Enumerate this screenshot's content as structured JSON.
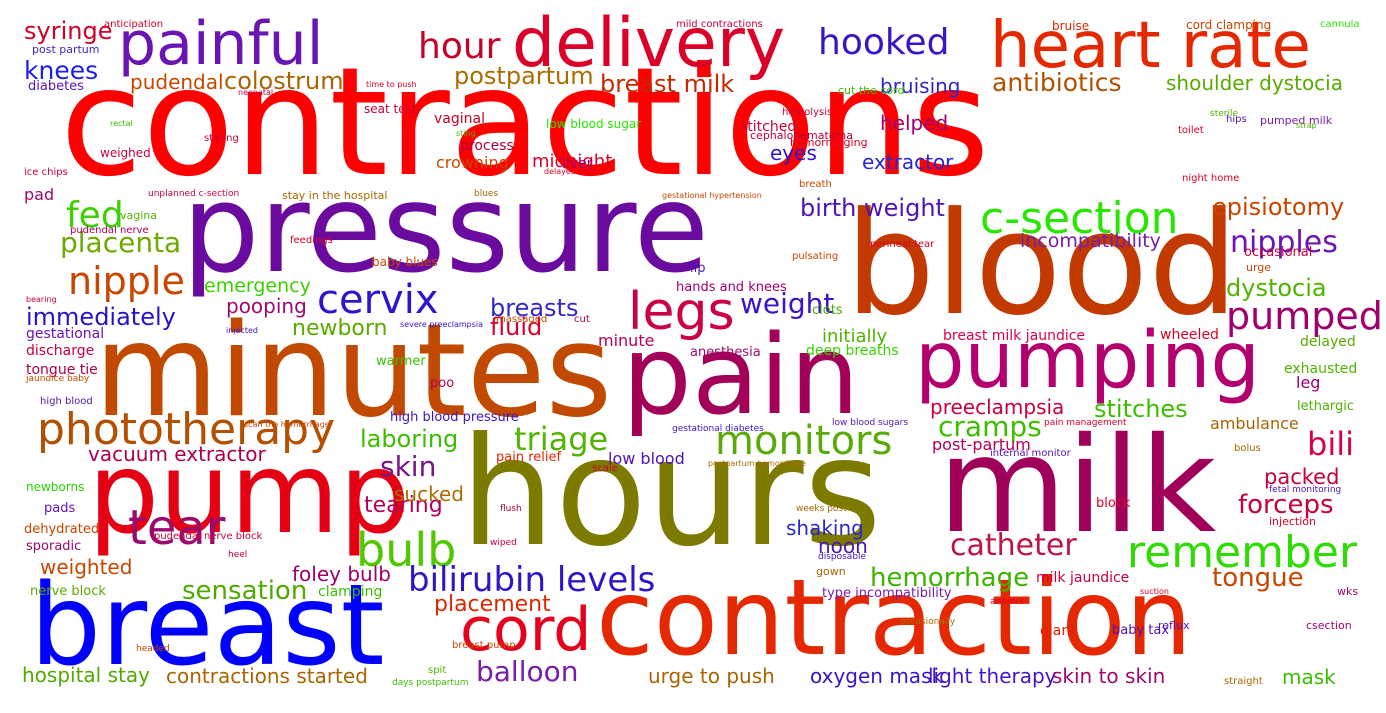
{
  "words": [
    {
      "text": "contractions",
      "color": "#ff0000"
    },
    {
      "text": "pressure",
      "color": "#6a0a9e"
    },
    {
      "text": "blood",
      "color": "#c23a00"
    },
    {
      "text": "minutes",
      "color": "#c24a00"
    },
    {
      "text": "pain",
      "color": "#a3005a"
    },
    {
      "text": "hours",
      "color": "#7d7a00"
    },
    {
      "text": "milk",
      "color": "#a0005a"
    },
    {
      "text": "pump",
      "color": "#e60014"
    },
    {
      "text": "breast",
      "color": "#0000ff"
    },
    {
      "text": "contraction",
      "color": "#e62800"
    },
    {
      "text": "painful",
      "color": "#6a14b4"
    },
    {
      "text": "delivery",
      "color": "#dc0028"
    },
    {
      "text": "heart rate",
      "color": "#e62800"
    },
    {
      "text": "pumping",
      "color": "#b4006e"
    },
    {
      "text": "legs",
      "color": "#cc0044"
    },
    {
      "text": "cervix",
      "color": "#2d14d2"
    },
    {
      "text": "phototherapy",
      "color": "#b45000"
    },
    {
      "text": "tear",
      "color": "#9b0a6e"
    },
    {
      "text": "cord",
      "color": "#e6001e"
    },
    {
      "text": "monitors",
      "color": "#5aaa0a"
    },
    {
      "text": "c-section",
      "color": "#28e600"
    },
    {
      "text": "bulb",
      "color": "#50c800"
    },
    {
      "text": "remember",
      "color": "#2ddc00"
    },
    {
      "text": "bilirubin levels",
      "color": "#3214c8"
    },
    {
      "text": "catheter",
      "color": "#be1446"
    },
    {
      "text": "nipple",
      "color": "#c84600"
    },
    {
      "text": "hour",
      "color": "#c80028"
    },
    {
      "text": "hooked",
      "color": "#3c14c8"
    },
    {
      "text": "pumped",
      "color": "#a0006e"
    },
    {
      "text": "nipples",
      "color": "#6e14b4"
    },
    {
      "text": "fed",
      "color": "#3cd200"
    },
    {
      "text": "placenta",
      "color": "#6eaa00"
    },
    {
      "text": "knees",
      "color": "#1e1ee6"
    },
    {
      "text": "syringe",
      "color": "#d20028"
    },
    {
      "text": "pudendal",
      "color": "#c84600"
    },
    {
      "text": "colostrum",
      "color": "#aa6400"
    },
    {
      "text": "postpartum",
      "color": "#aa6e00"
    },
    {
      "text": "breast milk",
      "color": "#c82800"
    },
    {
      "text": "antibiotics",
      "color": "#b45000"
    },
    {
      "text": "shoulder dystocia",
      "color": "#5aaa00"
    },
    {
      "text": "bruising",
      "color": "#2d28c8"
    },
    {
      "text": "birth weight",
      "color": "#5014b4"
    },
    {
      "text": "episiotomy",
      "color": "#c84600"
    },
    {
      "text": "incompatibility",
      "color": "#781eaa"
    },
    {
      "text": "emergency",
      "color": "#3cd200"
    },
    {
      "text": "immediately",
      "color": "#2814c8"
    },
    {
      "text": "breasts",
      "color": "#3228c8"
    },
    {
      "text": "weight",
      "color": "#3c14c8"
    },
    {
      "text": "fluid",
      "color": "#dc0028"
    },
    {
      "text": "newborn",
      "color": "#5aaa00"
    },
    {
      "text": "dystocia",
      "color": "#50b400"
    },
    {
      "text": "stitches",
      "color": "#3cbe00"
    },
    {
      "text": "bili",
      "color": "#dc0046"
    },
    {
      "text": "cramps",
      "color": "#3cbe00"
    },
    {
      "text": "preeclampsia",
      "color": "#c8003c"
    },
    {
      "text": "triage",
      "color": "#50b400"
    },
    {
      "text": "laboring",
      "color": "#3cbe00"
    },
    {
      "text": "skin",
      "color": "#78148c"
    },
    {
      "text": "tearing",
      "color": "#b4005a"
    },
    {
      "text": "sensation",
      "color": "#50aa00"
    },
    {
      "text": "hemorrhage",
      "color": "#3cb400"
    },
    {
      "text": "tongue",
      "color": "#c84600"
    },
    {
      "text": "forceps",
      "color": "#c8003c"
    },
    {
      "text": "packed",
      "color": "#c8003c"
    },
    {
      "text": "balloon",
      "color": "#781eaa"
    },
    {
      "text": "placement",
      "color": "#dc2800"
    },
    {
      "text": "foley bulb",
      "color": "#a0006e"
    },
    {
      "text": "hospital stay",
      "color": "#50aa00"
    },
    {
      "text": "contractions started",
      "color": "#aa6400"
    },
    {
      "text": "urge to push",
      "color": "#aa6400"
    },
    {
      "text": "oxygen mask",
      "color": "#3c14c8"
    },
    {
      "text": "light therapy",
      "color": "#4614c8"
    },
    {
      "text": "skin to skin",
      "color": "#9b0a6e"
    },
    {
      "text": "mask",
      "color": "#3cbe00"
    },
    {
      "text": "vacuum extractor",
      "color": "#aa0050"
    },
    {
      "text": "sucked",
      "color": "#aa6e00"
    },
    {
      "text": "weighted",
      "color": "#c84600"
    },
    {
      "text": "noon",
      "color": "#5014b4"
    },
    {
      "text": "shaking",
      "color": "#2d28c8"
    },
    {
      "text": "pooping",
      "color": "#9b0a6e"
    },
    {
      "text": "helped",
      "color": "#a0006e"
    },
    {
      "text": "eyes",
      "color": "#3214c8"
    },
    {
      "text": "extractor",
      "color": "#2828d2"
    },
    {
      "text": "midnight",
      "color": "#dc0028"
    },
    {
      "text": "liver",
      "color": "#a0006e"
    },
    {
      "text": "crowning",
      "color": "#c84600"
    },
    {
      "text": "process",
      "color": "#b4003c"
    },
    {
      "text": "vaginal",
      "color": "#c80028"
    },
    {
      "text": "stitched",
      "color": "#c8003c"
    },
    {
      "text": "minute",
      "color": "#b4005a"
    },
    {
      "text": "initially",
      "color": "#50b400"
    },
    {
      "text": "breast milk jaundice",
      "color": "#dc0046"
    },
    {
      "text": "ambulance",
      "color": "#aa6400"
    },
    {
      "text": "leg",
      "color": "#a0006e"
    },
    {
      "text": "low blood",
      "color": "#5014b4"
    },
    {
      "text": "post-partum",
      "color": "#b4005a"
    },
    {
      "text": "high blood pressure",
      "color": "#3c14c8"
    },
    {
      "text": "pain relief",
      "color": "#e62800"
    },
    {
      "text": "deep breaths",
      "color": "#3cd200"
    },
    {
      "text": "anesthesia",
      "color": "#9b0a6e"
    },
    {
      "text": "clots",
      "color": "#50aa00"
    },
    {
      "text": "hands and knees",
      "color": "#a0006e"
    },
    {
      "text": "warmer",
      "color": "#3cbe00"
    },
    {
      "text": "poo",
      "color": "#b4005a"
    },
    {
      "text": "lip",
      "color": "#5014b4"
    },
    {
      "text": "gestational",
      "color": "#6e14b4"
    },
    {
      "text": "discharge",
      "color": "#c8003c"
    },
    {
      "text": "tongue tie",
      "color": "#aa0050"
    },
    {
      "text": "wheeled",
      "color": "#dc0028"
    },
    {
      "text": "delayed",
      "color": "#5aaa00"
    },
    {
      "text": "exhausted",
      "color": "#50b400"
    },
    {
      "text": "lethargic",
      "color": "#50b400"
    },
    {
      "text": "giant",
      "color": "#e61e00"
    },
    {
      "text": "baby tax",
      "color": "#5014b4"
    },
    {
      "text": "milk jaundice",
      "color": "#c8003c"
    },
    {
      "text": "type incompatibility",
      "color": "#781eaa"
    },
    {
      "text": "gown",
      "color": "#aa6400"
    },
    {
      "text": "block",
      "color": "#dc0028"
    },
    {
      "text": "injection",
      "color": "#dc0028"
    },
    {
      "text": "occasional",
      "color": "#c8003c"
    },
    {
      "text": "urge",
      "color": "#c84600"
    },
    {
      "text": "pad",
      "color": "#9b0a6e"
    },
    {
      "text": "vagina",
      "color": "#50b400"
    },
    {
      "text": "pads",
      "color": "#6e14b4"
    },
    {
      "text": "newborns",
      "color": "#28d200"
    },
    {
      "text": "dehydrated",
      "color": "#c84600"
    },
    {
      "text": "sporadic",
      "color": "#9b0a6e"
    },
    {
      "text": "nerve block",
      "color": "#5aaa00"
    },
    {
      "text": "clamping",
      "color": "#3cbe00"
    },
    {
      "text": "wks",
      "color": "#9b0a6e"
    },
    {
      "text": "csection",
      "color": "#9b0a6e"
    },
    {
      "text": "reflux",
      "color": "#5014b4"
    },
    {
      "text": "diabetes",
      "color": "#5a14b4"
    },
    {
      "text": "post partum",
      "color": "#3c28c8"
    },
    {
      "text": "cord clamping",
      "color": "#c84600"
    },
    {
      "text": "bruise",
      "color": "#dc2800"
    },
    {
      "text": "hips",
      "color": "#5014b4"
    },
    {
      "text": "pumped milk",
      "color": "#781eaa"
    },
    {
      "text": "toilet",
      "color": "#dc0028"
    },
    {
      "text": "night home",
      "color": "#dc0028"
    },
    {
      "text": "ice chips",
      "color": "#c8003c"
    },
    {
      "text": "weighed",
      "color": "#c8003c"
    },
    {
      "text": "low blood sugar",
      "color": "#28e600"
    },
    {
      "text": "hemorrhaging",
      "color": "#dc0028"
    },
    {
      "text": "cephalohematoma",
      "color": "#b4003c"
    },
    {
      "text": "seat test",
      "color": "#c8003c"
    },
    {
      "text": "cut the cord",
      "color": "#3cbe00"
    },
    {
      "text": "hemolysis",
      "color": "#c8003c"
    },
    {
      "text": "stay in the hospital",
      "color": "#aa6400"
    },
    {
      "text": "baby blues",
      "color": "#c84600"
    },
    {
      "text": "feedings",
      "color": "#dc0028"
    },
    {
      "text": "staring",
      "color": "#c8003c"
    },
    {
      "text": "massaged",
      "color": "#c84600"
    },
    {
      "text": "pulsating",
      "color": "#c84600"
    },
    {
      "text": "cut",
      "color": "#aa0050"
    },
    {
      "text": "breath",
      "color": "#c84600"
    },
    {
      "text": "anticipation",
      "color": "#dc0028"
    },
    {
      "text": "mild contractions",
      "color": "#c8003c"
    },
    {
      "text": "cannula",
      "color": "#28e600"
    },
    {
      "text": "time to push",
      "color": "#dc0028"
    },
    {
      "text": "neonatal",
      "color": "#c8003c"
    },
    {
      "text": "rectal",
      "color": "#3cbe00"
    },
    {
      "text": "sting",
      "color": "#50b400"
    },
    {
      "text": "delayed cord",
      "color": "#dc0028"
    },
    {
      "text": "blues",
      "color": "#aa6400"
    },
    {
      "text": "gestational hypertension",
      "color": "#c84600"
    },
    {
      "text": "unplanned c-section",
      "color": "#c8003c"
    },
    {
      "text": "sterile",
      "color": "#50b400"
    },
    {
      "text": "strap",
      "color": "#50b400"
    },
    {
      "text": "perineal tear",
      "color": "#dc0028"
    },
    {
      "text": "pudendal nerve",
      "color": "#aa0050"
    },
    {
      "text": "bearing",
      "color": "#c8003c"
    },
    {
      "text": "injected",
      "color": "#3c14c8"
    },
    {
      "text": "severe preeclampsia",
      "color": "#3c14c8"
    },
    {
      "text": "jaundice baby",
      "color": "#c84600"
    },
    {
      "text": "high blood",
      "color": "#5014b4"
    },
    {
      "text": "gestational diabetes",
      "color": "#3c14c8"
    },
    {
      "text": "low blood sugars",
      "color": "#5014b4"
    },
    {
      "text": "scale",
      "color": "#c8003c"
    },
    {
      "text": "postpartum hemorrhage",
      "color": "#aa6e00"
    },
    {
      "text": "internal monitor",
      "color": "#5014b4"
    },
    {
      "text": "pain management",
      "color": "#dc0028"
    },
    {
      "text": "bolus",
      "color": "#aa6400"
    },
    {
      "text": "fetal monitoring",
      "color": "#5014b4"
    },
    {
      "text": "scan the hemorrhage",
      "color": "#c84600"
    },
    {
      "text": "flush",
      "color": "#b4003c"
    },
    {
      "text": "wiped",
      "color": "#c8003c"
    },
    {
      "text": "weeks post",
      "color": "#aa6400"
    },
    {
      "text": "disposable",
      "color": "#3c14c8"
    },
    {
      "text": "pudendal nerve block",
      "color": "#c8003c"
    },
    {
      "text": "heel",
      "color": "#c8003c"
    },
    {
      "text": "anemia",
      "color": "#dc0028"
    },
    {
      "text": "suction",
      "color": "#dc0028"
    },
    {
      "text": "occasionally",
      "color": "#aa6e00"
    },
    {
      "text": "breast pump",
      "color": "#c84600"
    },
    {
      "text": "headed",
      "color": "#c84600"
    },
    {
      "text": "spit",
      "color": "#50b400"
    },
    {
      "text": "days postpartum",
      "color": "#3cbe00"
    },
    {
      "text": "straight",
      "color": "#aa6400"
    }
  ]
}
